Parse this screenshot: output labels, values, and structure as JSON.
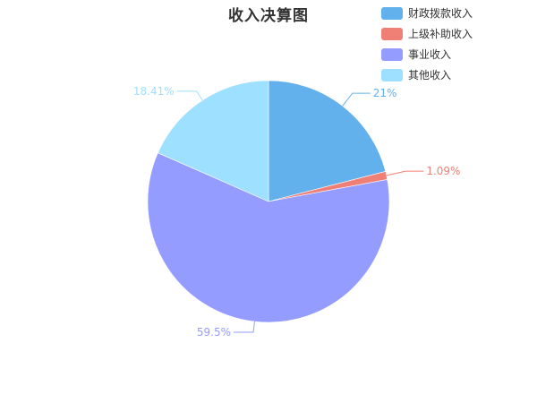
{
  "chart_data": {
    "type": "pie",
    "title": "收入决算图",
    "legend_position": "top-right",
    "slices": [
      {
        "name": "财政拨款收入",
        "value": 21,
        "label": "21%",
        "color": "#62b1ec"
      },
      {
        "name": "上级补助收入",
        "value": 1.09,
        "label": "1.09%",
        "color": "#f07f76"
      },
      {
        "name": "事业收入",
        "value": 59.5,
        "label": "59.5%",
        "color": "#959cff"
      },
      {
        "name": "其他收入",
        "value": 18.41,
        "label": "18.41%",
        "color": "#9ee0ff"
      }
    ]
  }
}
